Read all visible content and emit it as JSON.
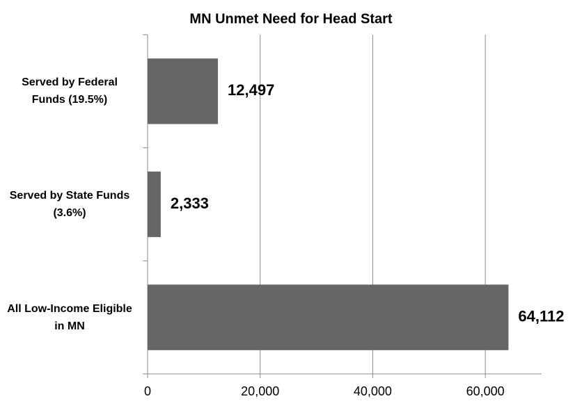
{
  "chart_data": {
    "type": "bar",
    "orientation": "horizontal",
    "title": "MN Unmet Need for Head Start",
    "categories": [
      "Served by Federal Funds (19.5%)",
      "Served by State Funds (3.6%)",
      "All Low-Income Eligible in MN"
    ],
    "values": [
      12497,
      2333,
      64112
    ],
    "value_labels": [
      "12,497",
      "2,333",
      "64,112"
    ],
    "color": "#666666",
    "xlim": [
      0,
      70000
    ],
    "xticks": [
      0,
      {
        "value": 20000,
        "label": "20,000"
      },
      {
        "value": 40000,
        "label": "40,000"
      },
      {
        "value": 60000,
        "label": "60,000"
      }
    ],
    "grid": true
  }
}
